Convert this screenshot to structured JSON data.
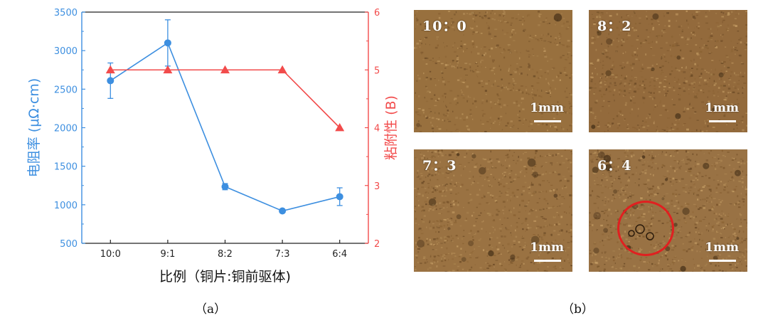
{
  "chart_data": {
    "type": "line",
    "categories": [
      "10:0",
      "9:1",
      "8:2",
      "7:3",
      "6:4"
    ],
    "xlabel": "比例（铜片:铜前驱体)",
    "ylabel_left": "电阻率 (μΩ·cm)",
    "ylabel_right": "粘附性 (B)",
    "ylim_left": [
      500,
      3500
    ],
    "yticks_left": [
      "500",
      "1000",
      "1500",
      "2000",
      "2500",
      "3000",
      "3500"
    ],
    "ylim_right": [
      2,
      6
    ],
    "yticks_right": [
      "2",
      "3",
      "4",
      "5",
      "6"
    ],
    "series": [
      {
        "axis": "left",
        "color": "#3d8fe0",
        "marker": "circle",
        "values": [
          2610,
          3100,
          1235,
          920,
          1105
        ],
        "errors": [
          230,
          300,
          40,
          20,
          115
        ]
      },
      {
        "axis": "right",
        "color": "#f24b4b",
        "marker": "triangle",
        "values": [
          5,
          5,
          5,
          5,
          4
        ]
      }
    ]
  },
  "captions": {
    "a": "（a）",
    "b": "（b）"
  },
  "micrographs": [
    {
      "label": "10：0",
      "scale": "1mm",
      "tone": "#98703e",
      "highlight": false
    },
    {
      "label": "8：2",
      "scale": "1mm",
      "tone": "#936a3c",
      "highlight": false
    },
    {
      "label": "7：3",
      "scale": "1mm",
      "tone": "#9a7242",
      "highlight": false
    },
    {
      "label": "6：4",
      "scale": "1mm",
      "tone": "#997244",
      "highlight": true
    }
  ],
  "colors": {
    "left_axis": "#3d8fe0",
    "right_axis": "#f24b4b",
    "highlight_circle": "#e02020"
  }
}
